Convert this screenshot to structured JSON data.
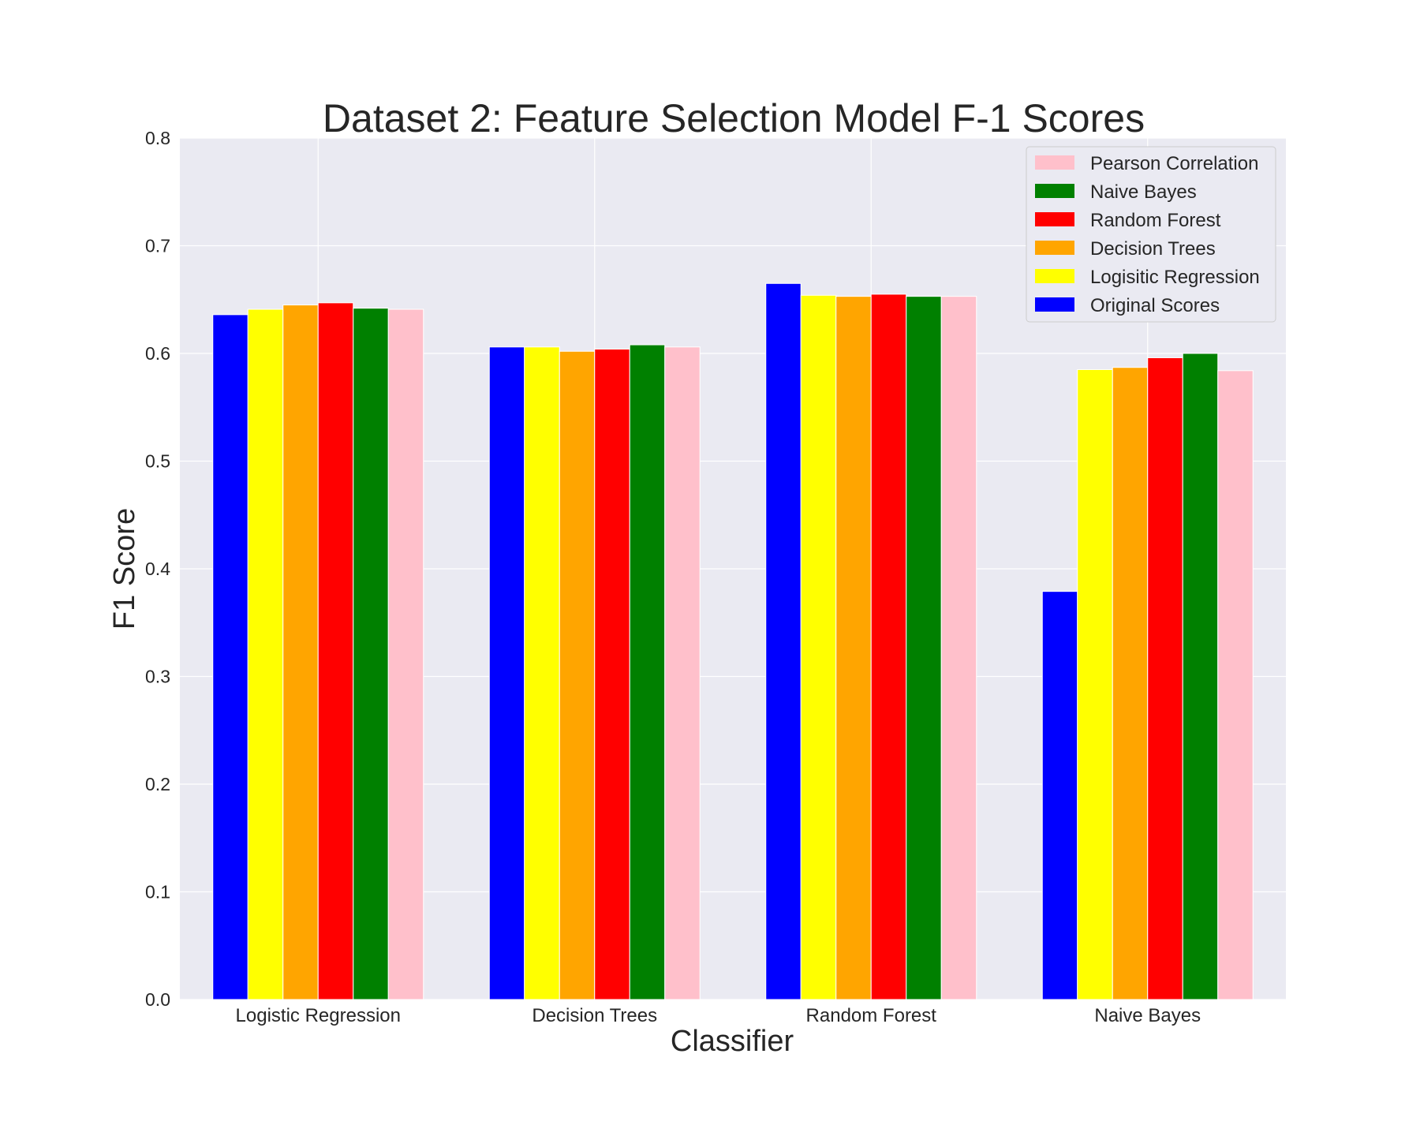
{
  "chart_data": {
    "type": "bar",
    "title": "Dataset 2: Feature Selection Model F-1 Scores",
    "xlabel": "Classifier",
    "ylabel": "F1 Score",
    "ylim": [
      0,
      0.8
    ],
    "yticks": [
      "0.0",
      "0.1",
      "0.2",
      "0.3",
      "0.4",
      "0.5",
      "0.6",
      "0.7",
      "0.8"
    ],
    "grid": true,
    "legend_position": "top-right",
    "categories": [
      "Logistic Regression",
      "Decision Trees",
      "Random Forest",
      "Naive Bayes"
    ],
    "series": [
      {
        "name": "Original Scores",
        "color": "#0000ff",
        "values": [
          0.636,
          0.606,
          0.665,
          0.379
        ]
      },
      {
        "name": "Logisitic Regression",
        "color": "#ffff00",
        "values": [
          0.641,
          0.606,
          0.654,
          0.585
        ]
      },
      {
        "name": "Decision Trees",
        "color": "#ffa500",
        "values": [
          0.645,
          0.602,
          0.653,
          0.587
        ]
      },
      {
        "name": "Random Forest",
        "color": "#ff0000",
        "values": [
          0.647,
          0.604,
          0.655,
          0.596
        ]
      },
      {
        "name": "Naive Bayes",
        "color": "#008000",
        "values": [
          0.642,
          0.608,
          0.653,
          0.6
        ]
      },
      {
        "name": "Pearson Correlation",
        "color": "#ffc0cb",
        "values": [
          0.641,
          0.606,
          0.653,
          0.584
        ]
      }
    ]
  }
}
